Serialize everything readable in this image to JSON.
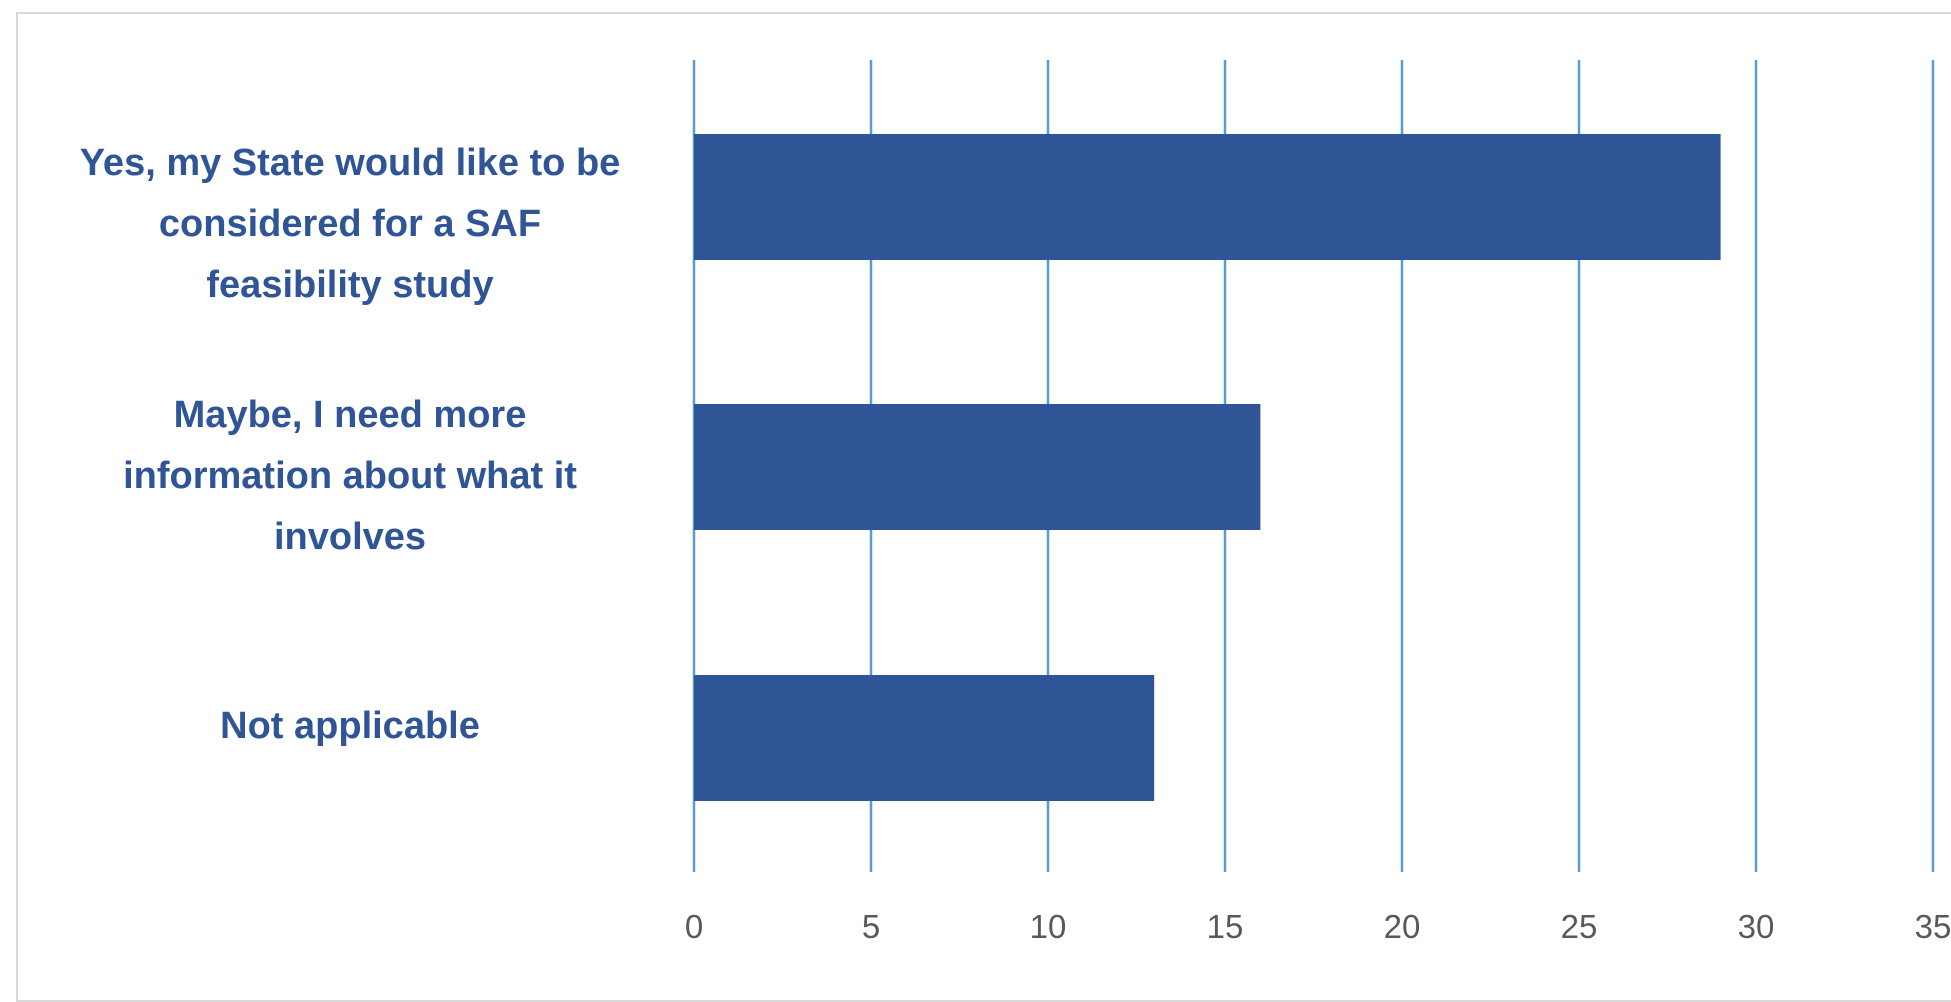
{
  "chart_data": {
    "type": "bar",
    "orientation": "horizontal",
    "categories": [
      "Yes, my State would like to be considered for a SAF feasibility study",
      "Maybe, I need more information about what it involves",
      "Not applicable"
    ],
    "values": [
      29,
      16,
      13
    ],
    "xlim": [
      0,
      35
    ],
    "xticks": [
      "0",
      "5",
      "10",
      "15",
      "20",
      "25",
      "30",
      "35"
    ],
    "grid": "vertical",
    "legend": "none",
    "bar_color": "#2f5597",
    "grid_color": "#5b9bd5",
    "tick_label_color": "#595959",
    "category_label_color": "#2f5597"
  }
}
